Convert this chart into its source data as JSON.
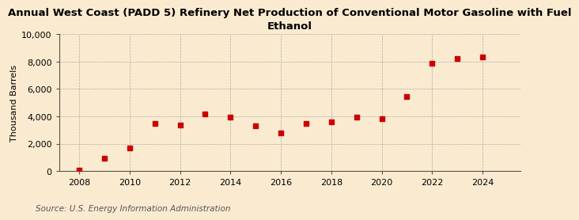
{
  "title": "Annual West Coast (PADD 5) Refinery Net Production of Conventional Motor Gasoline with Fuel\nEthanol",
  "ylabel": "Thousand Barrels",
  "source": "Source: U.S. Energy Information Administration",
  "background_color": "#faebd0",
  "plot_bg_color": "#faebd0",
  "years": [
    2008,
    2009,
    2010,
    2011,
    2012,
    2013,
    2014,
    2015,
    2016,
    2017,
    2018,
    2019,
    2020,
    2021,
    2022,
    2023,
    2024
  ],
  "values": [
    50,
    950,
    1700,
    3500,
    3350,
    4150,
    3950,
    3300,
    2800,
    3500,
    3600,
    3950,
    3800,
    5450,
    7900,
    8250,
    8350
  ],
  "marker_color": "#cc0000",
  "marker_size": 5,
  "xlim": [
    2007.2,
    2025.5
  ],
  "ylim": [
    0,
    10000
  ],
  "yticks": [
    0,
    2000,
    4000,
    6000,
    8000,
    10000
  ],
  "xticks": [
    2008,
    2010,
    2012,
    2014,
    2016,
    2018,
    2020,
    2022,
    2024
  ],
  "title_fontsize": 9.5,
  "axis_fontsize": 8,
  "source_fontsize": 7.5
}
